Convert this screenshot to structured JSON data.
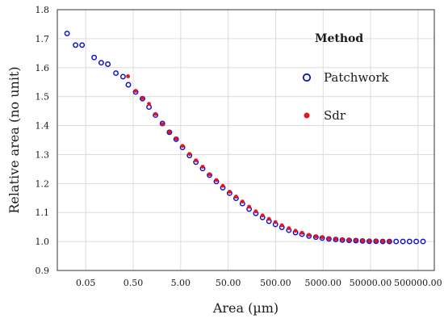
{
  "chart_data": {
    "type": "scatter",
    "title": "",
    "xlabel": "Area (µm)",
    "ylabel": "Relative area (no unit)",
    "x_scale": "log",
    "xlim": [
      0.0126,
      1100000
    ],
    "ylim": [
      0.9,
      1.8
    ],
    "x_ticks": [
      0.05,
      0.5,
      5,
      50,
      500,
      5000,
      50000,
      500000
    ],
    "x_tick_labels": [
      "0.05",
      "0.50",
      "5.00",
      "50.00",
      "500.00",
      "5000.00",
      "50000.00",
      "500000.00"
    ],
    "y_ticks": [
      0.9,
      1.0,
      1.1,
      1.2,
      1.3,
      1.4,
      1.5,
      1.6,
      1.7,
      1.8
    ],
    "y_tick_labels": [
      "0.9",
      "1.0",
      "1.1",
      "1.2",
      "1.3",
      "1.4",
      "1.5",
      "1.6",
      "1.7",
      "1.8"
    ],
    "grid": true,
    "legend": {
      "title": "Method",
      "position": "top-right"
    },
    "series": [
      {
        "name": "Patchwork",
        "marker": "open-circle",
        "color": "#1010d0",
        "x": [
          0.0202,
          0.0305,
          0.0419,
          0.0752,
          0.1062,
          0.1463,
          0.2164,
          0.305,
          0.3953,
          0.5641,
          0.7839,
          1.0757,
          1.4747,
          2.0651,
          2.9015,
          4.0162,
          5.4736,
          7.6585,
          10.4776,
          14.4958,
          20.2024,
          28.1601,
          38.5264,
          53.5743,
          73.2815,
          100.0,
          138.3468,
          191.3931,
          264.7769,
          362.2467,
          495.6014,
          678.055,
          949.5172,
          1312.4005,
          1796.395,
          2515.64,
          3523.14,
          4789.01,
          6616.91,
          9221.41,
          12699.0,
          17669.0,
          24586.0,
          33890.0,
          46909.0,
          65043.0,
          90003.0,
          124739.0,
          172586.0,
          240260.0,
          331000.0,
          458000.0,
          636000.0
        ],
        "y": [
          1.718,
          1.678,
          1.678,
          1.635,
          1.617,
          1.612,
          1.581,
          1.569,
          1.541,
          1.516,
          1.493,
          1.464,
          1.436,
          1.407,
          1.377,
          1.353,
          1.325,
          1.297,
          1.274,
          1.252,
          1.229,
          1.207,
          1.186,
          1.167,
          1.149,
          1.131,
          1.112,
          1.097,
          1.083,
          1.07,
          1.059,
          1.049,
          1.039,
          1.031,
          1.025,
          1.019,
          1.015,
          1.012,
          1.009,
          1.007,
          1.005,
          1.004,
          1.003,
          1.002,
          1.001,
          1.001,
          1.0,
          1.0,
          1.0,
          1.0,
          1.0,
          1.0,
          1.0
        ]
      },
      {
        "name": "Sdr",
        "marker": "filled-circle",
        "color": "#e8141c",
        "x": [
          0.3889,
          0.5641,
          0.7839,
          1.0757,
          1.4747,
          2.0651,
          2.9015,
          4.0162,
          5.4736,
          7.6585,
          10.4776,
          14.4958,
          20.2024,
          28.1601,
          38.5264,
          53.5743,
          73.2815,
          100.0,
          138.3468,
          191.3931,
          264.7769,
          362.2467,
          495.6014,
          678.055,
          949.5172,
          1312.4005,
          1796.395,
          2515.64,
          3523.14,
          4789.01,
          6616.91,
          9221.41,
          12699.0,
          17669.0,
          24586.0,
          33890.0,
          46909.0,
          65043.0,
          90003.0,
          124739.0
        ],
        "y": [
          1.57,
          1.52,
          1.495,
          1.475,
          1.44,
          1.405,
          1.378,
          1.355,
          1.33,
          1.302,
          1.28,
          1.258,
          1.232,
          1.212,
          1.192,
          1.172,
          1.155,
          1.138,
          1.12,
          1.104,
          1.09,
          1.078,
          1.067,
          1.056,
          1.046,
          1.037,
          1.03,
          1.023,
          1.018,
          1.015,
          1.011,
          1.009,
          1.007,
          1.005,
          1.004,
          1.003,
          1.002,
          1.002,
          1.001,
          1.001
        ]
      }
    ]
  }
}
